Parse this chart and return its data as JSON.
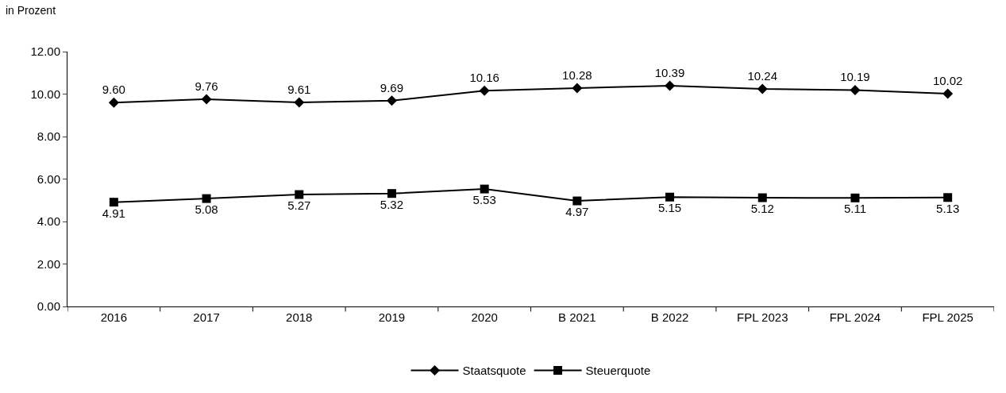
{
  "chart_data": {
    "type": "line",
    "ylabel": "in Prozent",
    "categories": [
      "2016",
      "2017",
      "2018",
      "2019",
      "2020",
      "B 2021",
      "B 2022",
      "FPL 2023",
      "FPL 2024",
      "FPL 2025"
    ],
    "series": [
      {
        "name": "Staatsquote",
        "color": "#000000",
        "marker": "diamond",
        "values": [
          9.6,
          9.76,
          9.61,
          9.69,
          10.16,
          10.28,
          10.39,
          10.24,
          10.19,
          10.02
        ],
        "value_labels": [
          "9.60",
          "9.76",
          "9.61",
          "9.69",
          "10.16",
          "10.28",
          "10.39",
          "10.24",
          "10.19",
          "10.02"
        ]
      },
      {
        "name": "Steuerquote",
        "color": "#000000",
        "marker": "square",
        "values": [
          4.91,
          5.08,
          5.27,
          5.32,
          5.53,
          4.97,
          5.15,
          5.12,
          5.11,
          5.13
        ],
        "value_labels": [
          "4.91",
          "5.08",
          "5.27",
          "5.32",
          "5.53",
          "4.97",
          "5.15",
          "5.12",
          "5.11",
          "5.13"
        ]
      }
    ],
    "ylim": [
      0,
      12
    ],
    "yticks": [
      {
        "value": 0,
        "label": "0.00"
      },
      {
        "value": 2,
        "label": "2.00"
      },
      {
        "value": 4,
        "label": "4.00"
      },
      {
        "value": 6,
        "label": "6.00"
      },
      {
        "value": 8,
        "label": "8.00"
      },
      {
        "value": 10,
        "label": "10.00"
      },
      {
        "value": 12,
        "label": "12.00"
      }
    ],
    "legend": "bottom",
    "line_style": "solid"
  }
}
